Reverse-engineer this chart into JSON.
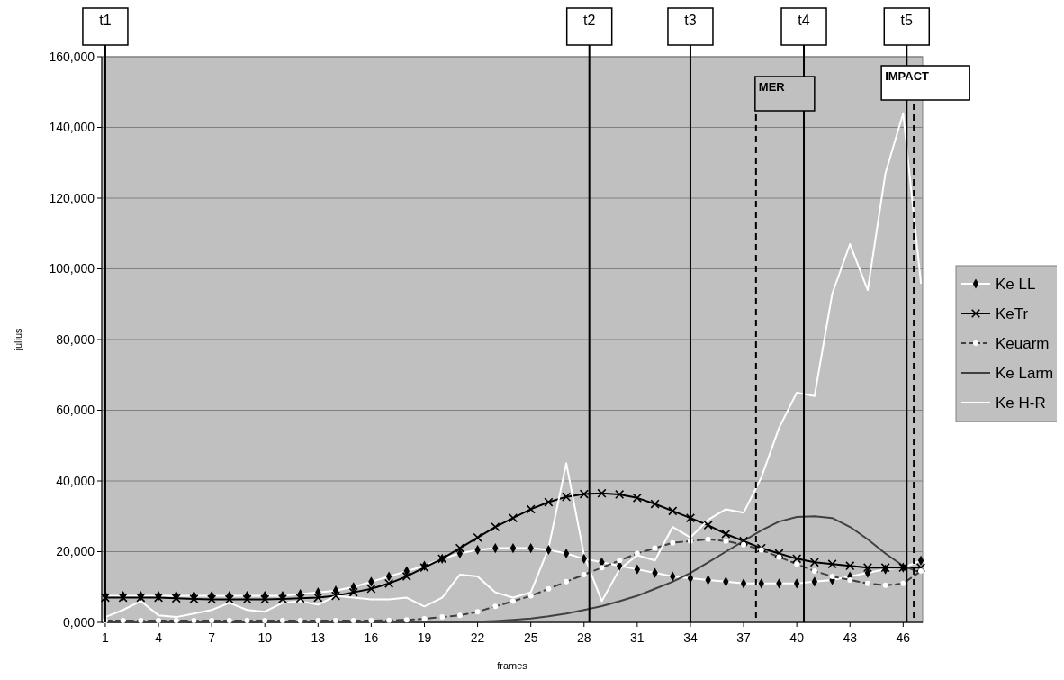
{
  "chart_data": {
    "type": "line",
    "xlabel": "frames",
    "ylabel": "julius",
    "x": [
      1,
      2,
      3,
      4,
      5,
      6,
      7,
      8,
      9,
      10,
      11,
      12,
      13,
      14,
      15,
      16,
      17,
      18,
      19,
      20,
      21,
      22,
      23,
      24,
      25,
      26,
      27,
      28,
      29,
      30,
      31,
      32,
      33,
      34,
      35,
      36,
      37,
      38,
      39,
      40,
      41,
      42,
      43,
      44,
      45,
      46,
      47
    ],
    "xlim": [
      0.8,
      47.1
    ],
    "xticks": [
      1,
      4,
      7,
      10,
      13,
      16,
      19,
      22,
      25,
      28,
      31,
      34,
      37,
      40,
      43,
      46
    ],
    "ylim": [
      0,
      160000
    ],
    "yticks": [
      {
        "value": 0,
        "label": "0,000"
      },
      {
        "value": 20000,
        "label": "20,000"
      },
      {
        "value": 40000,
        "label": "40,000"
      },
      {
        "value": 60000,
        "label": "60,000"
      },
      {
        "value": 80000,
        "label": "80,000"
      },
      {
        "value": 100000,
        "label": "100,000"
      },
      {
        "value": 120000,
        "label": "120,000"
      },
      {
        "value": 140000,
        "label": "140,000"
      },
      {
        "value": 160000,
        "label": "160,000"
      }
    ],
    "grid": "y",
    "legend": "right",
    "series": [
      {
        "name": "Ke LL",
        "color": "#ffffff",
        "marker": "diamond",
        "line_style": "solid",
        "values": [
          7500,
          7500,
          7500,
          7500,
          7500,
          7500,
          7500,
          7500,
          7500,
          7500,
          7500,
          8000,
          8500,
          9000,
          10000,
          11500,
          13000,
          14500,
          16000,
          18000,
          19500,
          20500,
          21000,
          21000,
          21000,
          20500,
          19500,
          18000,
          17000,
          16000,
          15000,
          14000,
          13000,
          12500,
          12000,
          11500,
          11000,
          11000,
          11000,
          11000,
          11500,
          12000,
          13000,
          14000,
          15000,
          15500,
          17500
        ]
      },
      {
        "name": "KeTr",
        "color": "#000000",
        "marker": "cross",
        "line_style": "solid",
        "values": [
          7000,
          7000,
          7000,
          7000,
          6800,
          6600,
          6500,
          6500,
          6500,
          6500,
          6600,
          6800,
          7000,
          7500,
          8500,
          9500,
          11000,
          13000,
          15500,
          18000,
          21000,
          24000,
          27000,
          29500,
          32000,
          34000,
          35500,
          36300,
          36500,
          36200,
          35200,
          33500,
          31500,
          29500,
          27500,
          25000,
          23000,
          21000,
          19500,
          18000,
          17000,
          16500,
          16000,
          15500,
          15500,
          15500,
          15500
        ]
      },
      {
        "name": "Keuarm",
        "color": "#404040",
        "marker": "circle",
        "line_style": "dashed",
        "values": [
          500,
          500,
          500,
          500,
          500,
          500,
          500,
          500,
          500,
          500,
          500,
          500,
          500,
          500,
          500,
          500,
          600,
          700,
          1000,
          1500,
          2000,
          3000,
          4500,
          6000,
          7500,
          9500,
          11500,
          13500,
          15500,
          17500,
          19500,
          21000,
          22500,
          23000,
          23500,
          23000,
          22000,
          20500,
          18500,
          16500,
          14500,
          13000,
          12000,
          11000,
          10500,
          11000,
          14500
        ]
      },
      {
        "name": "Ke Larm",
        "color": "#404040",
        "marker": "none",
        "line_style": "solid",
        "values": [
          0,
          0,
          0,
          0,
          0,
          0,
          0,
          0,
          0,
          0,
          0,
          0,
          0,
          0,
          0,
          0,
          0,
          0,
          0,
          0,
          100,
          200,
          400,
          700,
          1100,
          1700,
          2500,
          3500,
          4600,
          6000,
          7500,
          9500,
          11500,
          14000,
          17000,
          20000,
          23000,
          26000,
          28500,
          29800,
          30000,
          29500,
          27000,
          23500,
          19500,
          16000,
          14000
        ]
      },
      {
        "name": "Ke H-R",
        "color": "#ffffff",
        "marker": "none",
        "line_style": "solid",
        "values": [
          1500,
          3500,
          6000,
          2000,
          1500,
          2500,
          3500,
          5500,
          3500,
          3000,
          5500,
          6000,
          5000,
          7500,
          7000,
          6500,
          6500,
          7000,
          4500,
          7000,
          13500,
          13000,
          8500,
          7000,
          8500,
          21000,
          45000,
          19000,
          6000,
          15000,
          19000,
          17500,
          27000,
          24000,
          29000,
          32000,
          31000,
          41000,
          55000,
          65000,
          64000,
          93000,
          107000,
          94000,
          127000,
          144000,
          96000
        ]
      }
    ],
    "ref_lines": [
      {
        "axis": "x",
        "value": 1,
        "label": "t1",
        "color": "#000000",
        "line_style": "solid"
      },
      {
        "axis": "x",
        "value": 28.3,
        "label": "t2",
        "color": "#000000",
        "line_style": "solid"
      },
      {
        "axis": "x",
        "value": 34,
        "label": "t3",
        "color": "#000000",
        "line_style": "solid"
      },
      {
        "axis": "x",
        "value": 40.4,
        "label": "t4",
        "color": "#000000",
        "line_style": "solid"
      },
      {
        "axis": "x",
        "value": 46.2,
        "label": "t5",
        "color": "#000000",
        "line_style": "solid"
      },
      {
        "axis": "x",
        "value": 37.7,
        "label": "MER",
        "color": "#000000",
        "line_style": "dashed"
      },
      {
        "axis": "x",
        "value": 46.6,
        "label": "IMPACT",
        "color": "#000000",
        "line_style": "dashed"
      }
    ]
  }
}
